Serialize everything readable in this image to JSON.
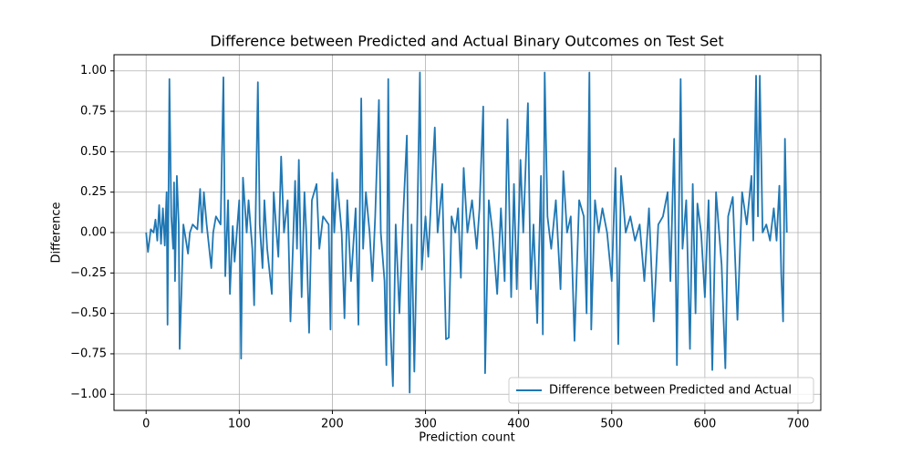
{
  "chart_data": {
    "type": "line",
    "title": "Difference between Predicted and Actual Binary Outcomes on Test Set",
    "xlabel": "Prediction count",
    "ylabel": "Difference",
    "xlim": [
      -34.5,
      724.5
    ],
    "ylim": [
      -1.1,
      1.1
    ],
    "xticks": [
      0,
      100,
      200,
      300,
      400,
      500,
      600,
      700
    ],
    "yticks": [
      {
        "value": -1,
        "label": "−1.00"
      },
      {
        "value": -0.75,
        "label": "−0.75"
      },
      {
        "value": -0.5,
        "label": "−0.50"
      },
      {
        "value": -0.25,
        "label": "−0.25"
      },
      {
        "value": 0,
        "label": "0.00"
      },
      {
        "value": 0.25,
        "label": "0.25"
      },
      {
        "value": 0.5,
        "label": "0.50"
      },
      {
        "value": 0.75,
        "label": "0.75"
      },
      {
        "value": 1,
        "label": "1.00"
      }
    ],
    "grid": true,
    "legend": "lower right",
    "series": [
      {
        "name": "Difference between Predicted and Actual",
        "color": "#1f77b4",
        "x": [
          0,
          2,
          5,
          8,
          10,
          12,
          14,
          16,
          18,
          20,
          22,
          23,
          25,
          27,
          29,
          30,
          31,
          33,
          35,
          36,
          38,
          40,
          42,
          45,
          47,
          50,
          55,
          58,
          60,
          62,
          65,
          70,
          72,
          75,
          80,
          83,
          85,
          88,
          90,
          93,
          95,
          100,
          102,
          104,
          108,
          110,
          114,
          116,
          120,
          122,
          125,
          127,
          130,
          135,
          137,
          140,
          142,
          145,
          148,
          152,
          155,
          160,
          162,
          164,
          167,
          170,
          172,
          175,
          178,
          183,
          186,
          190,
          196,
          198,
          200,
          202,
          205,
          210,
          213,
          216,
          220,
          225,
          228,
          231,
          233,
          236,
          240,
          243,
          246,
          250,
          252,
          256,
          258,
          260,
          262,
          265,
          268,
          272,
          276,
          280,
          283,
          285,
          288,
          291,
          294,
          296,
          300,
          303,
          306,
          310,
          313,
          318,
          322,
          325,
          328,
          332,
          335,
          338,
          341,
          345,
          350,
          355,
          358,
          362,
          364,
          368,
          372,
          377,
          381,
          385,
          388,
          392,
          395,
          398,
          402,
          405,
          410,
          413,
          416,
          420,
          424,
          426,
          428,
          431,
          435,
          440,
          445,
          448,
          452,
          456,
          460,
          465,
          470,
          473,
          476,
          478,
          482,
          486,
          490,
          495,
          500,
          504,
          507,
          510,
          515,
          520,
          525,
          530,
          535,
          540,
          545,
          550,
          555,
          560,
          563,
          567,
          570,
          574,
          576,
          580,
          584,
          587,
          590,
          592,
          596,
          600,
          604,
          608,
          612,
          618,
          622,
          625,
          630,
          635,
          640,
          645,
          650,
          652,
          655,
          657,
          659,
          662,
          666,
          670,
          674,
          677,
          680,
          682,
          684,
          686,
          688
        ],
        "values": [
          0,
          -0.12,
          0.02,
          0,
          0.08,
          -0.05,
          0.17,
          -0.07,
          0.15,
          -0.08,
          0.25,
          -0.57,
          0.95,
          0.1,
          -0.1,
          0.31,
          -0.3,
          0.35,
          0.05,
          -0.72,
          -0.36,
          0.05,
          -0.02,
          -0.13,
          0,
          0.05,
          0.02,
          0.27,
          0,
          0.25,
          0.05,
          -0.22,
          0,
          0.1,
          0.05,
          0.96,
          -0.27,
          0.2,
          -0.38,
          0.04,
          -0.18,
          0.2,
          -0.78,
          0.34,
          0,
          0.2,
          -0.1,
          -0.45,
          0.93,
          0.05,
          -0.22,
          0.2,
          -0.1,
          -0.38,
          0.25,
          0,
          -0.15,
          0.47,
          0,
          0.2,
          -0.55,
          0.32,
          -0.1,
          0.45,
          -0.4,
          0.25,
          0,
          -0.62,
          0.2,
          0.3,
          -0.1,
          0.1,
          0.05,
          -0.6,
          0.37,
          0,
          0.33,
          0,
          -0.53,
          0.2,
          -0.3,
          0.15,
          -0.57,
          0.83,
          -0.1,
          0.25,
          0,
          -0.3,
          0.1,
          0.82,
          0,
          -0.3,
          -0.82,
          0.95,
          -0.53,
          -0.95,
          0.05,
          -0.5,
          0.1,
          0.6,
          -0.99,
          0.05,
          -0.86,
          0,
          0.99,
          -0.23,
          0.1,
          -0.15,
          0.2,
          0.65,
          0,
          0.3,
          -0.66,
          -0.65,
          0.1,
          0,
          0.15,
          -0.28,
          0.4,
          0,
          0.2,
          -0.1,
          0.15,
          0.78,
          -0.87,
          0.2,
          0,
          -0.38,
          0.15,
          -0.3,
          0.7,
          -0.4,
          0.3,
          -0.35,
          0.45,
          0,
          0.8,
          -0.35,
          0.05,
          -0.56,
          0.35,
          -0.63,
          0.99,
          0.1,
          -0.1,
          0.2,
          -0.35,
          0.38,
          0,
          0.1,
          -0.67,
          0.2,
          0.1,
          -0.5,
          0.99,
          -0.6,
          0.2,
          0,
          0.15,
          0,
          -0.3,
          0.4,
          -0.69,
          0.35,
          0,
          0.1,
          -0.05,
          0.05,
          -0.3,
          0.15,
          -0.55,
          0.05,
          0.1,
          0.25,
          -0.3,
          0.58,
          -0.82,
          0.95,
          -0.1,
          0.2,
          -0.72,
          0.3,
          -0.5,
          0.18,
          0,
          -0.4,
          0.2,
          -0.85,
          0.25,
          -0.2,
          -0.84,
          0.1,
          0.22,
          -0.54,
          0.25,
          0.05,
          0.35,
          -0.05,
          0.97,
          0.1,
          0.97,
          0,
          0.05,
          -0.05,
          0.15,
          -0.05,
          0.29,
          -0.25,
          -0.55,
          0.58,
          0
        ]
      }
    ]
  }
}
